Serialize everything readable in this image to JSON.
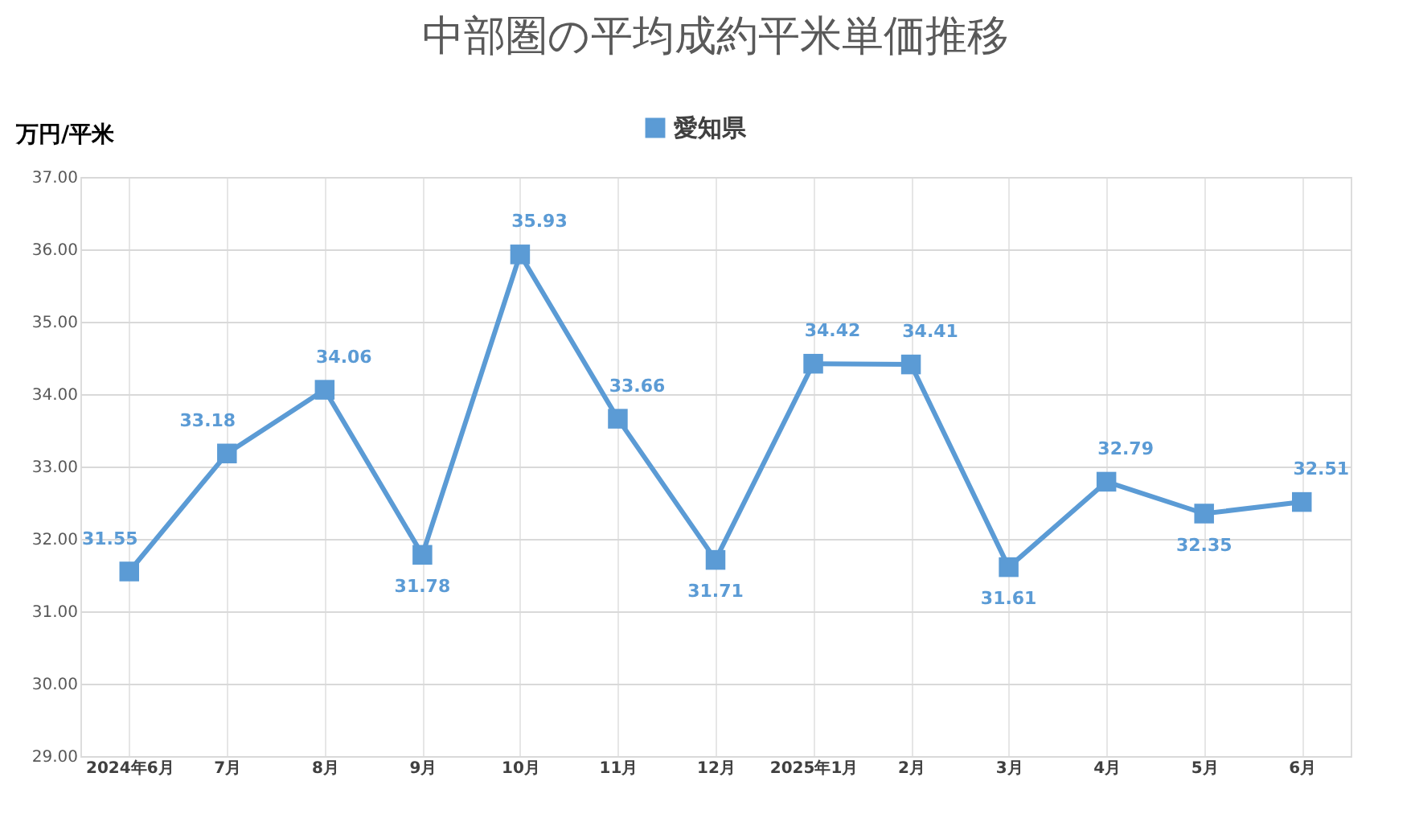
{
  "chart_data": {
    "type": "line",
    "title": "中部圏の平均成約平米単価推移",
    "ylabel": "万円/平米",
    "categories": [
      "2024年6月",
      "7月",
      "8月",
      "9月",
      "10月",
      "11月",
      "12月",
      "2025年1月",
      "2月",
      "3月",
      "4月",
      "5月",
      "6月"
    ],
    "series": [
      {
        "name": "愛知県",
        "color": "#5b9bd5",
        "values": [
          31.55,
          33.18,
          34.06,
          31.78,
          35.93,
          33.66,
          31.71,
          34.42,
          34.41,
          31.61,
          32.79,
          32.35,
          32.51
        ]
      }
    ],
    "ylim": [
      29,
      37
    ],
    "yticks": [
      {
        "value": 29,
        "label": "29.00"
      },
      {
        "value": 30,
        "label": "30.00"
      },
      {
        "value": 31,
        "label": "31.00"
      },
      {
        "value": 32,
        "label": "32.00"
      },
      {
        "value": 33,
        "label": "33.00"
      },
      {
        "value": 34,
        "label": "34.00"
      },
      {
        "value": 35,
        "label": "35.00"
      },
      {
        "value": 36,
        "label": "36.00"
      },
      {
        "value": 37,
        "label": "37.00"
      }
    ],
    "grid": true,
    "legend": "top",
    "marker": "square",
    "line_style": "solid",
    "data_labels": true
  }
}
